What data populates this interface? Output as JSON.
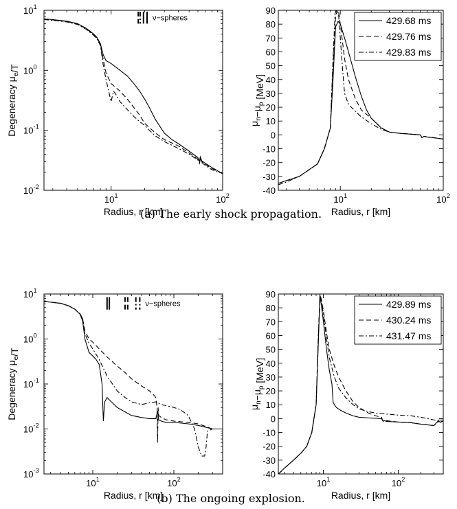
{
  "figure": {
    "captions": [
      "(a)  The early shock propagation.",
      "(b)  The ongoing explosion."
    ]
  },
  "styles": {
    "solid": "",
    "dashed": "7,4",
    "dashdot": "7,3,2,3"
  },
  "chart_data": [
    {
      "id": "a-left",
      "type": "line",
      "xlabel": "Radius, r [km]",
      "ylabel": "Degeneracy μ_e/T",
      "xscale": "log",
      "yscale": "log",
      "xlim": [
        2.5,
        100
      ],
      "ylim": [
        0.01,
        10
      ],
      "xticks": [
        {
          "v": 10,
          "m": "10",
          "e": "1"
        },
        {
          "v": 100,
          "m": "10",
          "e": "2"
        }
      ],
      "yticks": [
        {
          "v": 0.01,
          "m": "10",
          "e": "-2"
        },
        {
          "v": 0.1,
          "m": "10",
          "e": "-1"
        },
        {
          "v": 1,
          "m": "10",
          "e": "0"
        },
        {
          "v": 10,
          "m": "10",
          "e": "1"
        }
      ],
      "annotation": {
        "text": "ν−spheres",
        "markers": [
          {
            "x": 17.5,
            "style": "dashed"
          },
          {
            "x": 18.2,
            "style": "dashdot"
          },
          {
            "x": 19.5,
            "style": "solid"
          },
          {
            "x": 21.0,
            "style": "solid"
          }
        ],
        "y_top": 9.5,
        "y_bot": 6.0
      },
      "series": [
        {
          "style": "solid",
          "x": [
            2.5,
            3,
            4,
            5,
            6,
            7,
            7.5,
            8,
            8.5,
            9,
            10,
            12,
            14,
            16,
            18,
            20,
            22,
            25,
            30,
            35,
            40,
            50,
            60,
            62,
            63,
            65,
            70,
            80,
            100
          ],
          "y": [
            7.2,
            7.0,
            6.6,
            6.0,
            5.0,
            4.0,
            3.5,
            2.8,
            1.8,
            1.45,
            1.3,
            1.0,
            0.8,
            0.6,
            0.45,
            0.33,
            0.24,
            0.15,
            0.09,
            0.07,
            0.06,
            0.045,
            0.035,
            0.03,
            0.036,
            0.031,
            0.028,
            0.024,
            0.019
          ]
        },
        {
          "style": "dashed",
          "x": [
            2.5,
            3,
            4,
            5,
            6,
            7,
            7.5,
            8,
            8.5,
            9,
            10,
            12,
            14,
            16,
            18,
            20,
            25,
            30,
            40,
            50,
            60,
            62,
            63,
            65,
            70,
            80,
            100
          ],
          "y": [
            7.1,
            6.9,
            6.5,
            5.9,
            4.9,
            3.9,
            3.4,
            2.7,
            1.5,
            0.9,
            0.6,
            0.45,
            0.33,
            0.24,
            0.18,
            0.13,
            0.09,
            0.07,
            0.055,
            0.042,
            0.033,
            0.028,
            0.035,
            0.03,
            0.027,
            0.023,
            0.019
          ]
        },
        {
          "style": "dashdot",
          "x": [
            2.5,
            3,
            4,
            5,
            6,
            7,
            7.5,
            8,
            8.5,
            9,
            9.5,
            10,
            10.5,
            11,
            12,
            14,
            16,
            18,
            20,
            22,
            25,
            30,
            40,
            50,
            60,
            62,
            63,
            65,
            70,
            80,
            100
          ],
          "y": [
            7.0,
            6.8,
            6.4,
            5.8,
            4.8,
            3.8,
            3.3,
            2.6,
            1.2,
            0.7,
            0.45,
            0.3,
            0.45,
            0.4,
            0.3,
            0.22,
            0.17,
            0.14,
            0.12,
            0.1,
            0.08,
            0.065,
            0.05,
            0.04,
            0.032,
            0.028,
            0.034,
            0.029,
            0.026,
            0.022,
            0.019
          ]
        }
      ]
    },
    {
      "id": "a-right",
      "type": "line",
      "xlabel": "Radius, r [km]",
      "ylabel": "μ_n−μ_p [MeV]",
      "xscale": "log",
      "yscale": "linear",
      "xlim": [
        2.5,
        100
      ],
      "ylim": [
        -40,
        90
      ],
      "xticks": [
        {
          "v": 10,
          "m": "10",
          "e": "1"
        },
        {
          "v": 100,
          "m": "10",
          "e": "2"
        }
      ],
      "yticks": [
        {
          "v": -40,
          "t": "-40"
        },
        {
          "v": -30,
          "t": "-30"
        },
        {
          "v": -20,
          "t": "-20"
        },
        {
          "v": -10,
          "t": "-10"
        },
        {
          "v": 0,
          "t": "0"
        },
        {
          "v": 10,
          "t": "10"
        },
        {
          "v": 20,
          "t": "20"
        },
        {
          "v": 30,
          "t": "30"
        },
        {
          "v": 40,
          "t": "40"
        },
        {
          "v": 50,
          "t": "50"
        },
        {
          "v": 60,
          "t": "60"
        },
        {
          "v": 70,
          "t": "70"
        },
        {
          "v": 80,
          "t": "80"
        },
        {
          "v": 90,
          "t": "90"
        }
      ],
      "legend": {
        "entries": [
          {
            "name": "429.68 ms",
            "style": "solid"
          },
          {
            "name": "429.76 ms",
            "style": "dashed"
          },
          {
            "name": "429.83 ms",
            "style": "dashdot"
          }
        ]
      },
      "series": [
        {
          "style": "solid",
          "x": [
            2.5,
            3,
            4,
            5,
            6,
            7,
            8,
            8.5,
            9,
            9.5,
            10,
            11,
            12,
            14,
            16,
            18,
            20,
            25,
            30,
            40,
            50,
            60,
            62,
            65,
            70,
            80,
            100
          ],
          "y": [
            -35,
            -33,
            -30,
            -25,
            -21,
            -10,
            5,
            40,
            78,
            82,
            80,
            70,
            60,
            42,
            28,
            18,
            12,
            5,
            2,
            1,
            0.5,
            0,
            -2,
            -1,
            -1.5,
            -2,
            -3
          ]
        },
        {
          "style": "dashed",
          "x": [
            2.5,
            3,
            4,
            5,
            6,
            7,
            8,
            8.5,
            9,
            9.3,
            9.6,
            10,
            11,
            12,
            14,
            16,
            20,
            25,
            30,
            40,
            50,
            60,
            62,
            65,
            70,
            80,
            100
          ],
          "y": [
            -35,
            -33,
            -30,
            -25,
            -21,
            -10,
            5,
            50,
            85,
            90,
            90,
            80,
            55,
            40,
            26,
            18,
            12,
            5,
            2,
            1,
            0.5,
            0,
            -2,
            -1,
            -1.5,
            -2,
            -3
          ]
        },
        {
          "style": "dashdot",
          "x": [
            2.5,
            3,
            4,
            5,
            6,
            7,
            8,
            8.5,
            8.9,
            9.2,
            9.6,
            10,
            10.5,
            11,
            12,
            14,
            16,
            20,
            25,
            30,
            40,
            50,
            60,
            62,
            65,
            70,
            80,
            100
          ],
          "y": [
            -36,
            -34,
            -30,
            -25,
            -21,
            -10,
            5,
            55,
            88,
            90,
            88,
            70,
            48,
            30,
            22,
            17,
            13,
            8,
            4,
            2,
            1,
            0.5,
            0,
            -2,
            -1,
            -1.5,
            -2,
            -3
          ]
        }
      ]
    },
    {
      "id": "b-left",
      "type": "line",
      "xlabel": "Radius, r [km]",
      "ylabel": "Degeneracy μ_e/T",
      "xscale": "log",
      "yscale": "log",
      "xlim": [
        2.5,
        400
      ],
      "ylim": [
        0.001,
        10
      ],
      "xticks": [
        {
          "v": 10,
          "m": "10",
          "e": "1"
        },
        {
          "v": 100,
          "m": "10",
          "e": "2"
        }
      ],
      "yticks": [
        {
          "v": 0.001,
          "m": "10",
          "e": "-3"
        },
        {
          "v": 0.01,
          "m": "10",
          "e": "-2"
        },
        {
          "v": 0.1,
          "m": "10",
          "e": "-1"
        },
        {
          "v": 1,
          "m": "10",
          "e": "0"
        },
        {
          "v": 10,
          "m": "10",
          "e": "1"
        }
      ],
      "annotation": {
        "text": "ν−spheres",
        "markers": [
          {
            "x": 15.0,
            "style": "solid"
          },
          {
            "x": 16.0,
            "style": "solid"
          },
          {
            "x": 25.0,
            "style": "dashed"
          },
          {
            "x": 27.0,
            "style": "dashed"
          },
          {
            "x": 34.0,
            "style": "dashdot"
          },
          {
            "x": 38.0,
            "style": "dashdot"
          }
        ],
        "y_top": 8.5,
        "y_bot": 4.5
      },
      "series": [
        {
          "style": "solid",
          "x": [
            2.5,
            3,
            4,
            5,
            6,
            7,
            7.5,
            8,
            9,
            10,
            11,
            12,
            13,
            13.5,
            14,
            15,
            17,
            20,
            25,
            30,
            40,
            50,
            60,
            63,
            65,
            70,
            80,
            100,
            150,
            200,
            300,
            400
          ],
          "y": [
            6.8,
            6.6,
            6.2,
            5.5,
            4.6,
            3.5,
            2.5,
            1.0,
            0.5,
            0.42,
            0.35,
            0.27,
            0.1,
            0.015,
            0.04,
            0.05,
            0.04,
            0.03,
            0.024,
            0.02,
            0.018,
            0.017,
            0.017,
            0.025,
            0.016,
            0.015,
            0.014,
            0.014,
            0.013,
            0.012,
            0.01,
            0.01
          ]
        },
        {
          "style": "dashed",
          "x": [
            2.5,
            3,
            4,
            5,
            6,
            7,
            7.5,
            8,
            9,
            10,
            12,
            15,
            20,
            25,
            30,
            40,
            50,
            55,
            60,
            62,
            63,
            64,
            65,
            70,
            80,
            100,
            150,
            200,
            300,
            400
          ],
          "y": [
            6.8,
            6.6,
            6.2,
            5.5,
            4.6,
            3.6,
            2.8,
            1.5,
            1.0,
            0.85,
            0.6,
            0.4,
            0.25,
            0.18,
            0.13,
            0.09,
            0.07,
            0.06,
            0.05,
            0.03,
            0.005,
            0.03,
            0.02,
            0.018,
            0.016,
            0.015,
            0.014,
            0.013,
            0.01,
            0.01
          ]
        },
        {
          "style": "dashdot",
          "x": [
            2.5,
            3,
            4,
            5,
            6,
            7,
            7.5,
            8,
            9,
            10,
            12,
            15,
            20,
            25,
            30,
            40,
            50,
            60,
            70,
            80,
            100,
            120,
            150,
            180,
            200,
            220,
            230,
            240,
            250,
            260,
            300,
            400
          ],
          "y": [
            6.8,
            6.6,
            6.2,
            5.5,
            4.6,
            3.6,
            2.8,
            1.3,
            0.8,
            0.6,
            0.35,
            0.15,
            0.07,
            0.05,
            0.04,
            0.035,
            0.038,
            0.04,
            0.035,
            0.033,
            0.03,
            0.027,
            0.02,
            0.01,
            0.004,
            0.0025,
            0.0025,
            0.0025,
            0.004,
            0.009,
            0.01,
            0.01
          ]
        }
      ]
    },
    {
      "id": "b-right",
      "type": "line",
      "xlabel": "Radius, r [km]",
      "ylabel": "μ_n−μ_p [MeV]",
      "xscale": "log",
      "yscale": "linear",
      "xlim": [
        2.5,
        400
      ],
      "ylim": [
        -40,
        90
      ],
      "xticks": [
        {
          "v": 10,
          "m": "10",
          "e": "1"
        },
        {
          "v": 100,
          "m": "10",
          "e": "2"
        }
      ],
      "yticks": [
        {
          "v": -40,
          "t": "-40"
        },
        {
          "v": -30,
          "t": "-30"
        },
        {
          "v": -20,
          "t": "-20"
        },
        {
          "v": -10,
          "t": "-10"
        },
        {
          "v": 0,
          "t": "0"
        },
        {
          "v": 10,
          "t": "10"
        },
        {
          "v": 20,
          "t": "20"
        },
        {
          "v": 30,
          "t": "30"
        },
        {
          "v": 40,
          "t": "40"
        },
        {
          "v": 50,
          "t": "50"
        },
        {
          "v": 60,
          "t": "60"
        },
        {
          "v": 70,
          "t": "70"
        },
        {
          "v": 80,
          "t": "80"
        },
        {
          "v": 90,
          "t": "90"
        }
      ],
      "legend": {
        "entries": [
          {
            "name": "429.89 ms",
            "style": "solid"
          },
          {
            "name": "430.24 ms",
            "style": "dashed"
          },
          {
            "name": "431.47 ms",
            "style": "dashdot"
          }
        ]
      },
      "series": [
        {
          "style": "solid",
          "x": [
            2.5,
            3,
            4,
            5,
            6,
            7,
            8,
            8.5,
            9,
            9.5,
            10,
            11,
            12,
            13,
            13.5,
            14,
            15,
            17,
            20,
            25,
            30,
            40,
            50,
            60,
            63,
            65,
            70,
            100,
            150,
            200,
            300,
            350,
            400
          ],
          "y": [
            -40,
            -36,
            -30,
            -25,
            -20,
            -10,
            10,
            50,
            89,
            80,
            70,
            50,
            35,
            25,
            12,
            10,
            8,
            6,
            4,
            2,
            1,
            0.5,
            0.2,
            0,
            -2,
            -1.5,
            -2,
            -2.5,
            -3,
            -4,
            -5,
            -1,
            -1
          ]
        },
        {
          "style": "dashed",
          "x": [
            2.5,
            3,
            4,
            5,
            6,
            7,
            8,
            8.5,
            9,
            9.5,
            10,
            11,
            12,
            14,
            16,
            20,
            25,
            30,
            40,
            50,
            60,
            62,
            65,
            70,
            100,
            150,
            200,
            300,
            350,
            400
          ],
          "y": [
            -40,
            -36,
            -30,
            -25,
            -20,
            -10,
            10,
            55,
            90,
            85,
            78,
            62,
            50,
            38,
            30,
            20,
            12,
            8,
            4,
            2,
            1,
            -1.5,
            -1,
            -1.5,
            -2.5,
            -3,
            -4,
            -5,
            -2,
            -4
          ]
        },
        {
          "style": "dashdot",
          "x": [
            2.5,
            3,
            4,
            5,
            6,
            7,
            8,
            8.5,
            9,
            9.5,
            10,
            11,
            12,
            14,
            16,
            20,
            25,
            30,
            40,
            50,
            60,
            80,
            100,
            150,
            200,
            250,
            300,
            350,
            400
          ],
          "y": [
            -40,
            -36,
            -30,
            -25,
            -20,
            -10,
            10,
            55,
            90,
            84,
            75,
            58,
            44,
            30,
            22,
            15,
            10,
            7,
            5,
            4,
            3.5,
            3,
            2.5,
            2,
            1,
            0,
            -1,
            -2,
            -2
          ]
        }
      ]
    }
  ]
}
